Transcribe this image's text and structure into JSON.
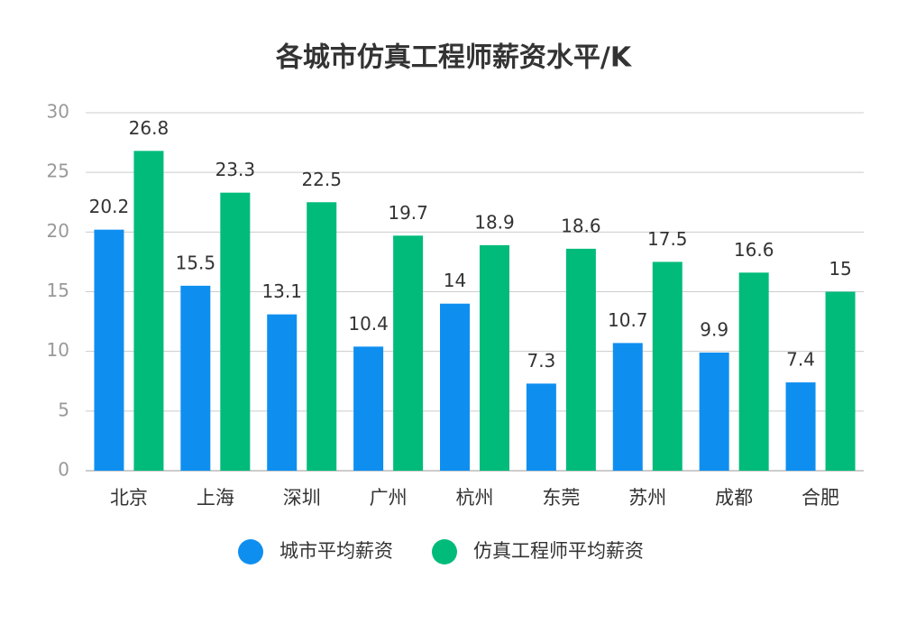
{
  "chart_data": {
    "type": "bar",
    "title": "各城市仿真工程师薪资水平/K",
    "categories": [
      "北京",
      "上海",
      "深圳",
      "广州",
      "杭州",
      "东莞",
      "苏州",
      "成都",
      "合肥"
    ],
    "series": [
      {
        "name": "城市平均薪资",
        "color": "#0e8ff0",
        "values": [
          20.2,
          15.5,
          13.1,
          10.4,
          14,
          7.3,
          10.7,
          9.9,
          7.4
        ]
      },
      {
        "name": "仿真工程师平均薪资",
        "color": "#00bb7a",
        "values": [
          26.8,
          23.3,
          22.5,
          19.7,
          18.9,
          18.6,
          17.5,
          16.6,
          15
        ]
      }
    ],
    "ylim": [
      0,
      30
    ],
    "yticks": [
      0,
      5,
      10,
      15,
      20,
      25,
      30
    ],
    "grid": true,
    "legend": "bottom"
  }
}
